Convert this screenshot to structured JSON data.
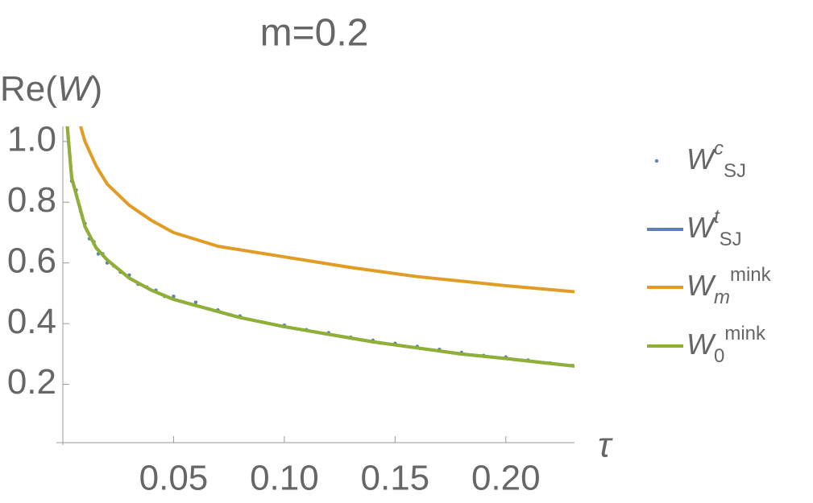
{
  "chart_data": {
    "type": "scatter",
    "title": "m=0.2",
    "ylabel": [
      {
        "text": "Re("
      },
      {
        "text": "W",
        "italic": true
      },
      {
        "text": ")"
      }
    ],
    "xlabel": "τ",
    "xlim": [
      0,
      0.231
    ],
    "ylim": [
      0,
      1.05
    ],
    "xticks": [
      0.05,
      {
        "value": 0.1,
        "label": "0.10"
      },
      0.15,
      {
        "value": 0.2,
        "label": "0.20"
      }
    ],
    "yticks": [
      0.2,
      0.4,
      0.6,
      0.8,
      {
        "value": 1.0,
        "label": "1.0"
      }
    ],
    "series": [
      {
        "name": "W",
        "name_parts": [
          {
            "text": "c",
            "pos": "sup",
            "italic": true
          },
          {
            "text": "SJ",
            "pos": "sub"
          }
        ],
        "kind": "points",
        "color": "#5e81b5",
        "x": [
          0.004,
          0.006,
          0.008,
          0.01,
          0.012,
          0.014,
          0.016,
          0.018,
          0.02,
          0.023,
          0.026,
          0.03,
          0.034,
          0.038,
          0.042,
          0.046,
          0.05,
          0.055,
          0.06,
          0.065,
          0.07,
          0.075,
          0.08,
          0.09,
          0.1,
          0.11,
          0.12,
          0.13,
          0.14,
          0.15,
          0.16,
          0.17,
          0.18,
          0.19,
          0.2,
          0.21,
          0.22,
          0.23
        ],
        "values": [
          0.87,
          0.84,
          0.77,
          0.73,
          0.68,
          0.67,
          0.63,
          0.63,
          0.6,
          0.59,
          0.57,
          0.56,
          0.53,
          0.52,
          0.51,
          0.49,
          0.49,
          0.47,
          0.47,
          0.45,
          0.445,
          0.43,
          0.425,
          0.405,
          0.395,
          0.38,
          0.37,
          0.355,
          0.345,
          0.335,
          0.325,
          0.315,
          0.305,
          0.295,
          0.29,
          0.28,
          0.27,
          0.262
        ]
      },
      {
        "name": "W",
        "name_parts": [
          {
            "text": "t",
            "pos": "sup",
            "italic": true
          },
          {
            "text": "SJ",
            "pos": "sub"
          }
        ],
        "kind": "line",
        "color": "#5e81b5",
        "x": [
          0.002,
          0.004,
          0.007,
          0.01,
          0.015,
          0.02,
          0.03,
          0.04,
          0.05,
          0.06,
          0.07,
          0.08,
          0.1,
          0.12,
          0.14,
          0.16,
          0.18,
          0.2,
          0.231
        ],
        "values": [
          1.05,
          0.88,
          0.8,
          0.72,
          0.65,
          0.61,
          0.55,
          0.51,
          0.48,
          0.46,
          0.44,
          0.42,
          0.39,
          0.365,
          0.34,
          0.32,
          0.3,
          0.285,
          0.26
        ]
      },
      {
        "name": "W",
        "name_parts": [
          {
            "text": "m",
            "pos": "sub",
            "italic": true
          },
          {
            "text": "mink",
            "pos": "sup"
          }
        ],
        "kind": "line",
        "color": "#e19c24",
        "x": [
          0.008,
          0.01,
          0.015,
          0.02,
          0.03,
          0.04,
          0.05,
          0.07,
          0.1,
          0.13,
          0.16,
          0.2,
          0.231
        ],
        "values": [
          1.05,
          1.0,
          0.92,
          0.86,
          0.79,
          0.74,
          0.7,
          0.655,
          0.62,
          0.585,
          0.555,
          0.525,
          0.505
        ]
      },
      {
        "name": "W",
        "name_parts": [
          {
            "text": "0",
            "pos": "sub"
          },
          {
            "text": "mink",
            "pos": "sup"
          }
        ],
        "kind": "line",
        "color": "#8fb032",
        "x": [
          0.002,
          0.004,
          0.007,
          0.01,
          0.015,
          0.02,
          0.03,
          0.04,
          0.05,
          0.06,
          0.07,
          0.08,
          0.1,
          0.12,
          0.14,
          0.16,
          0.18,
          0.2,
          0.231
        ],
        "values": [
          1.05,
          0.88,
          0.8,
          0.72,
          0.65,
          0.61,
          0.55,
          0.51,
          0.48,
          0.46,
          0.44,
          0.42,
          0.39,
          0.365,
          0.34,
          0.32,
          0.3,
          0.285,
          0.26
        ]
      }
    ]
  }
}
